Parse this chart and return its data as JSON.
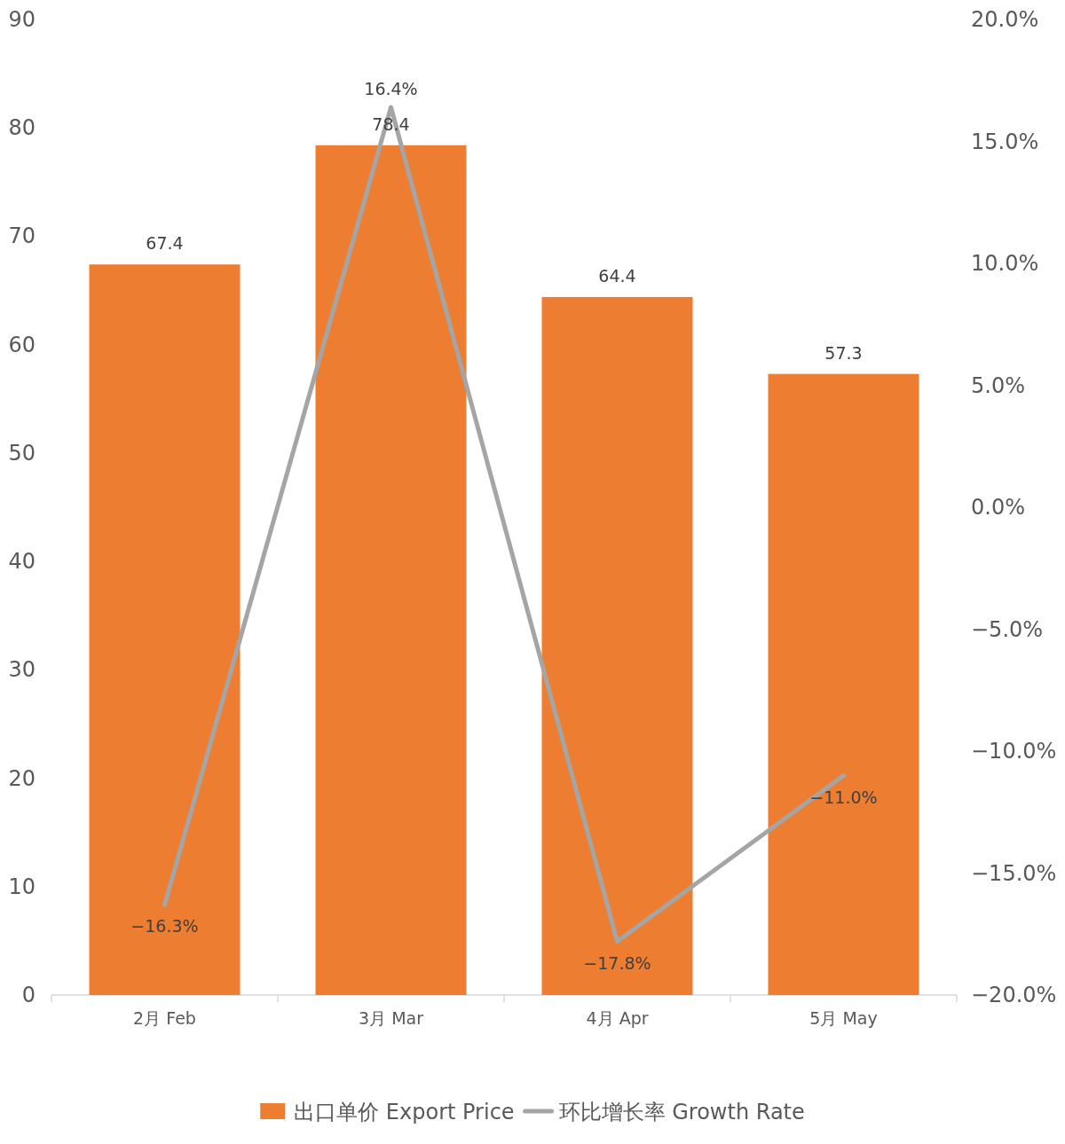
{
  "chart_data": {
    "type": "bar",
    "categories": [
      "2月 Feb",
      "3月 Mar",
      "4月 Apr",
      "5月 May"
    ],
    "series": [
      {
        "name": "出口单价 Export Price",
        "color": "#ed7d31",
        "values": [
          67.4,
          78.4,
          64.4,
          57.3
        ],
        "value_labels": [
          "67.4",
          "78.4",
          "64.4",
          "57.3"
        ]
      },
      {
        "name": "环比增长率 Growth Rate",
        "type": "line",
        "axis": "y2",
        "color": "#a5a5a5",
        "values": [
          -16.3,
          16.4,
          -17.8,
          -11.0
        ],
        "value_labels": [
          "−16.3%",
          "16.4%",
          "−17.8%",
          "−11.0%"
        ]
      }
    ],
    "ylim": [
      0,
      90
    ],
    "yticks": [
      0,
      10,
      20,
      30,
      40,
      50,
      60,
      70,
      80,
      90
    ],
    "y2lim": [
      -20,
      20
    ],
    "y2ticks": [
      {
        "value": -20,
        "label": "−20.0%"
      },
      {
        "value": -15,
        "label": "−15.0%"
      },
      {
        "value": -10,
        "label": "−10.0%"
      },
      {
        "value": -5,
        "label": "−5.0%"
      },
      {
        "value": 0,
        "label": "0.0%"
      },
      {
        "value": 5,
        "label": "5.0%"
      },
      {
        "value": 10,
        "label": "10.0%"
      },
      {
        "value": 15,
        "label": "15.0%"
      },
      {
        "value": 20,
        "label": "20.0%"
      }
    ],
    "legend": "bottom",
    "grid": false,
    "marker": "none",
    "line_style": "solid"
  }
}
